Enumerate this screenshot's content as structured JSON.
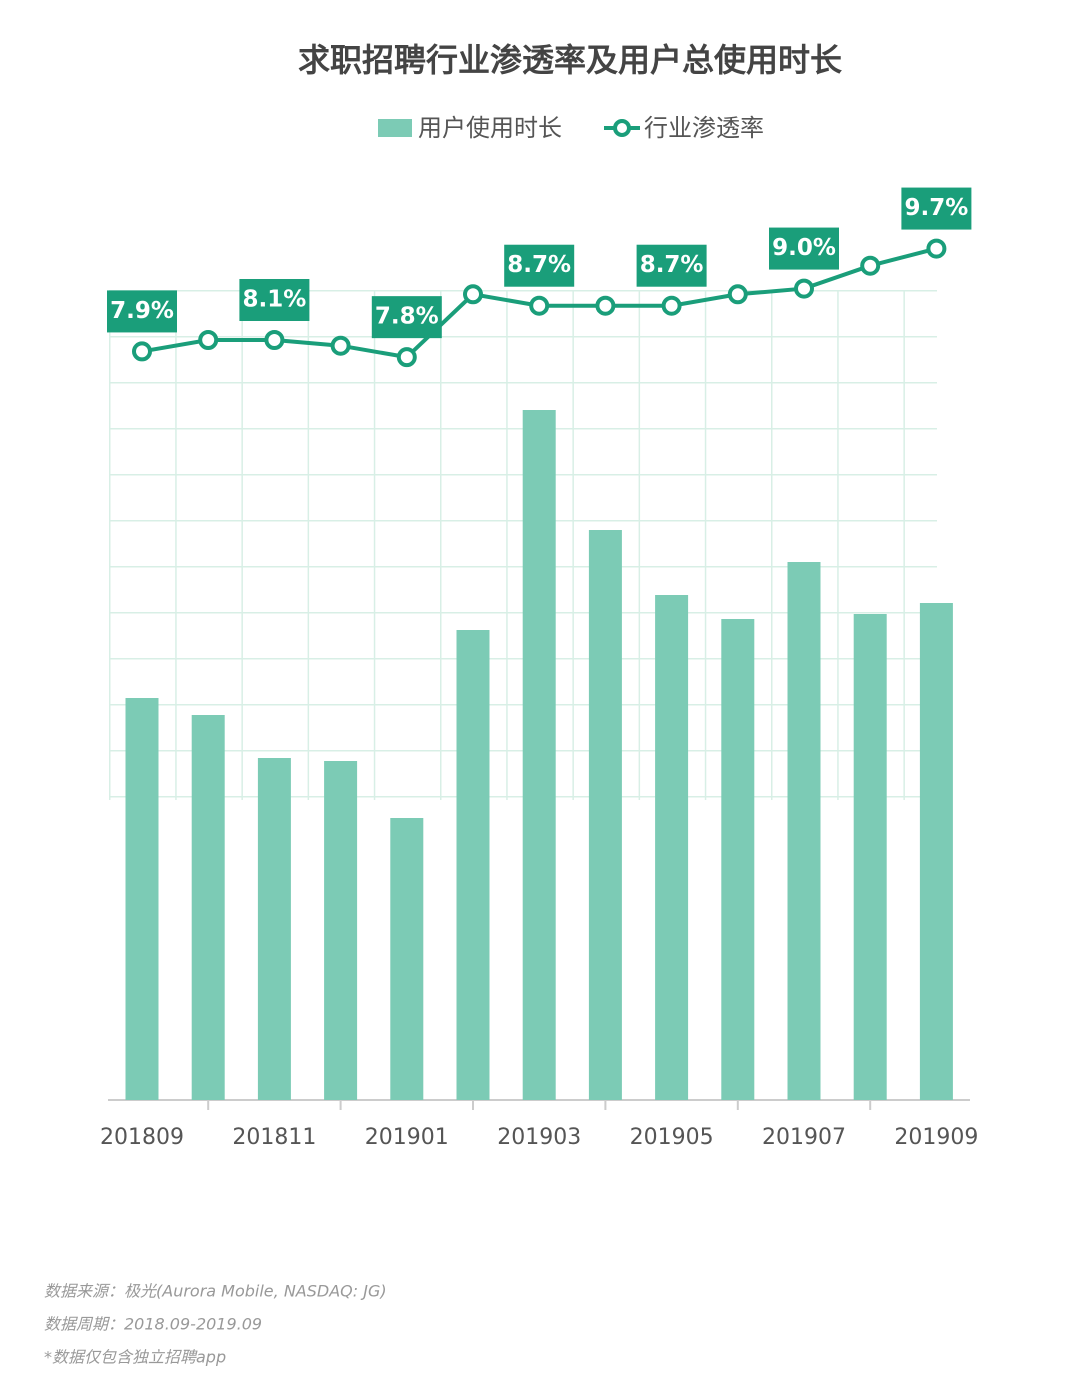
{
  "chart_data": {
    "type": "bar_line",
    "title": "求职招聘行业渗透率及用户总使用时长",
    "categories": [
      "201809",
      null,
      "201811",
      null,
      "201901",
      null,
      "201903",
      null,
      "201905",
      null,
      "201907",
      null,
      "201909"
    ],
    "series": [
      {
        "name": "用户使用时长",
        "color": "#7ccbb5",
        "type": "bar",
        "values": [
          402,
          385,
          342,
          339,
          282,
          470,
          690,
          570,
          505,
          481,
          538,
          486,
          497
        ]
      },
      {
        "name": "行业渗透率",
        "color": "#1a9e7a",
        "type": "line",
        "axis": "y2",
        "values": [
          7.9,
          8.1,
          8.1,
          8.0,
          7.8,
          8.9,
          8.7,
          8.7,
          8.7,
          8.9,
          9.0,
          9.4,
          9.7
        ],
        "value_labels": [
          "7.9%",
          null,
          "8.1%",
          null,
          "7.8%",
          null,
          "8.7%",
          null,
          "8.7%",
          null,
          "9.0%",
          null,
          "9.7%"
        ]
      }
    ],
    "ylim": [
      0,
      920
    ],
    "y2lim": [
      -5.2,
      10.9
    ],
    "notes": [
      "数据来源：极光(Aurora Mobile, NASDAQ: JG)",
      "数据周期：2018.09-2019.09",
      "*数据仅包含独立招聘app"
    ]
  }
}
